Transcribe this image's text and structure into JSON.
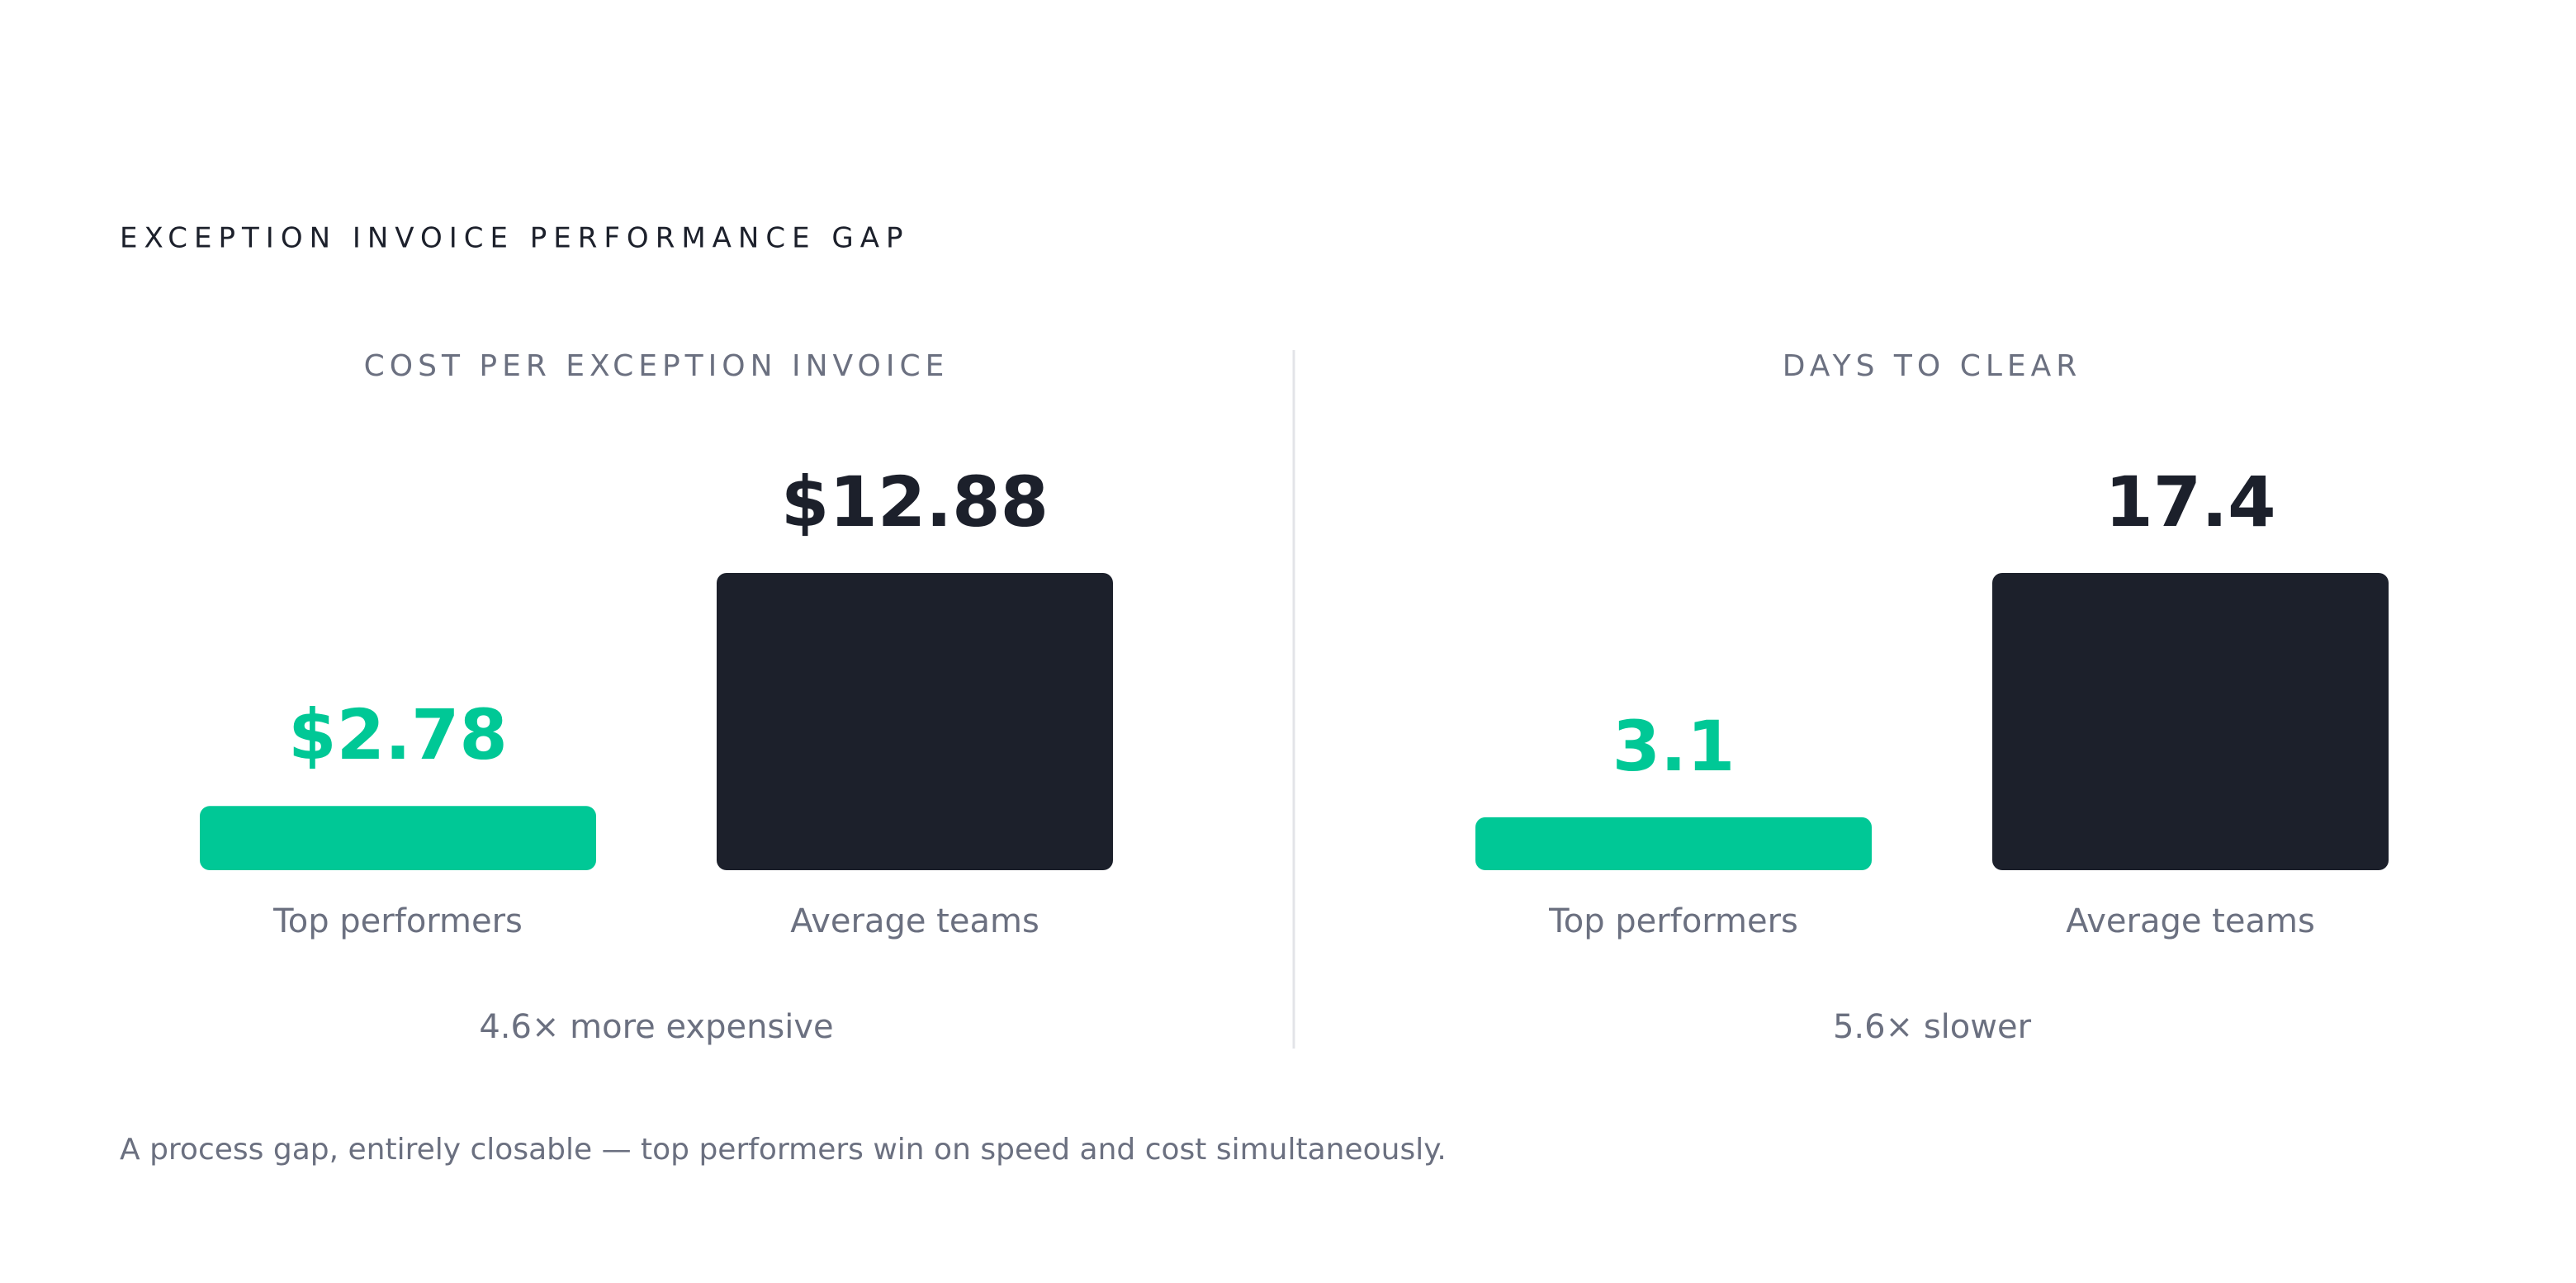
{
  "title": "EXCEPTION INVOICE PERFORMANCE GAP",
  "chart_data": [
    {
      "type": "bar",
      "title": "COST PER EXCEPTION INVOICE",
      "categories": [
        "Top performers",
        "Average teams"
      ],
      "values": [
        2.78,
        12.88
      ],
      "value_labels": [
        "$2.78",
        "$12.88"
      ],
      "colors": [
        "#00c896",
        "#1c202b"
      ],
      "note": "4.6× more expensive"
    },
    {
      "type": "bar",
      "title": "DAYS TO CLEAR",
      "categories": [
        "Top performers",
        "Average teams"
      ],
      "values": [
        3.1,
        17.4
      ],
      "colors": [
        "#00c896",
        "#1c202b"
      ],
      "note": "5.6× slower"
    }
  ],
  "footnote": "A process gap, entirely closable — top performers win on speed and cost simultaneously."
}
